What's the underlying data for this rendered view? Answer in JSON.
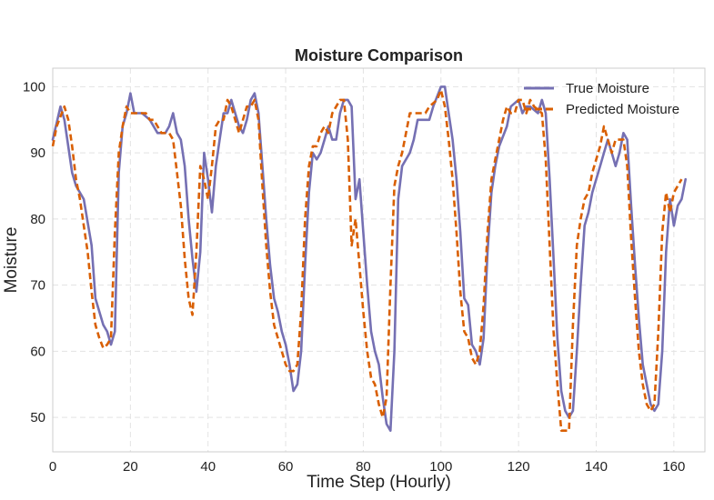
{
  "chart_data": {
    "type": "line",
    "title": "Moisture Comparison",
    "xlabel": "Time Step (Hourly)",
    "ylabel": "Moisture",
    "xlim": [
      0,
      168
    ],
    "ylim": [
      44.8,
      102.8
    ],
    "xticks": [
      0,
      20,
      40,
      60,
      80,
      100,
      120,
      140,
      160
    ],
    "yticks": [
      50,
      60,
      70,
      80,
      90,
      100
    ],
    "grid": true,
    "legend_position": "top-right",
    "series": [
      {
        "name": "True Moisture",
        "color": "#7570b3",
        "style": "solid",
        "points": [
          [
            0,
            92
          ],
          [
            2,
            97
          ],
          [
            3,
            95
          ],
          [
            5,
            87
          ],
          [
            6,
            85
          ],
          [
            8,
            83
          ],
          [
            10,
            76
          ],
          [
            11,
            68
          ],
          [
            13,
            64
          ],
          [
            14,
            63
          ],
          [
            15,
            61
          ],
          [
            16,
            63
          ],
          [
            17,
            87
          ],
          [
            18,
            94
          ],
          [
            19,
            96
          ],
          [
            20,
            99
          ],
          [
            21,
            96
          ],
          [
            23,
            96
          ],
          [
            25,
            95
          ],
          [
            27,
            93
          ],
          [
            29,
            93
          ],
          [
            30,
            94
          ],
          [
            31,
            96
          ],
          [
            32,
            93
          ],
          [
            33,
            92
          ],
          [
            34,
            88
          ],
          [
            35,
            80
          ],
          [
            36,
            74
          ],
          [
            37,
            69
          ],
          [
            38,
            75
          ],
          [
            39,
            90
          ],
          [
            40,
            86
          ],
          [
            41,
            81
          ],
          [
            42,
            88
          ],
          [
            43,
            92
          ],
          [
            44,
            96
          ],
          [
            45,
            96
          ],
          [
            46,
            98
          ],
          [
            47,
            96
          ],
          [
            48,
            94
          ],
          [
            49,
            93
          ],
          [
            50,
            95
          ],
          [
            51,
            98
          ],
          [
            52,
            99
          ],
          [
            53,
            96
          ],
          [
            54,
            88
          ],
          [
            55,
            80
          ],
          [
            56,
            73
          ],
          [
            57,
            68
          ],
          [
            58,
            66
          ],
          [
            59,
            63
          ],
          [
            60,
            61
          ],
          [
            61,
            58
          ],
          [
            62,
            54
          ],
          [
            63,
            55
          ],
          [
            64,
            60
          ],
          [
            65,
            73
          ],
          [
            66,
            84
          ],
          [
            67,
            90
          ],
          [
            68,
            89
          ],
          [
            69,
            90
          ],
          [
            70,
            92
          ],
          [
            71,
            94
          ],
          [
            72,
            92
          ],
          [
            73,
            92
          ],
          [
            74,
            96
          ],
          [
            75,
            98
          ],
          [
            76,
            98
          ],
          [
            77,
            97
          ],
          [
            78,
            83
          ],
          [
            79,
            86
          ],
          [
            80,
            78
          ],
          [
            81,
            70
          ],
          [
            82,
            63
          ],
          [
            83,
            60
          ],
          [
            84,
            58
          ],
          [
            85,
            53
          ],
          [
            86,
            49
          ],
          [
            87,
            48
          ],
          [
            88,
            60
          ],
          [
            89,
            83
          ],
          [
            90,
            88
          ],
          [
            92,
            90
          ],
          [
            93,
            92
          ],
          [
            94,
            95
          ],
          [
            95,
            95
          ],
          [
            97,
            95
          ],
          [
            98,
            97
          ],
          [
            100,
            100
          ],
          [
            101,
            100
          ],
          [
            102,
            96
          ],
          [
            103,
            92
          ],
          [
            104,
            86
          ],
          [
            105,
            78
          ],
          [
            106,
            68
          ],
          [
            107,
            67
          ],
          [
            108,
            61
          ],
          [
            109,
            60
          ],
          [
            110,
            58
          ],
          [
            111,
            62
          ],
          [
            112,
            75
          ],
          [
            113,
            84
          ],
          [
            114,
            88
          ],
          [
            115,
            91
          ],
          [
            117,
            94
          ],
          [
            118,
            97
          ],
          [
            120,
            98
          ],
          [
            121,
            96
          ],
          [
            122,
            97
          ],
          [
            123,
            97
          ],
          [
            125,
            96
          ],
          [
            126,
            98
          ],
          [
            127,
            96
          ],
          [
            128,
            86
          ],
          [
            129,
            74
          ],
          [
            130,
            62
          ],
          [
            131,
            54
          ],
          [
            132,
            51
          ],
          [
            133,
            50
          ],
          [
            134,
            51
          ],
          [
            135,
            60
          ],
          [
            136,
            70
          ],
          [
            137,
            79
          ],
          [
            138,
            81
          ],
          [
            139,
            84
          ],
          [
            140,
            86
          ],
          [
            141,
            88
          ],
          [
            142,
            90
          ],
          [
            143,
            92
          ],
          [
            144,
            90
          ],
          [
            145,
            88
          ],
          [
            146,
            90
          ],
          [
            147,
            93
          ],
          [
            148,
            92
          ],
          [
            149,
            82
          ],
          [
            150,
            73
          ],
          [
            151,
            65
          ],
          [
            152,
            58
          ],
          [
            153,
            55
          ],
          [
            154,
            52
          ],
          [
            155,
            51
          ],
          [
            156,
            52
          ],
          [
            157,
            60
          ],
          [
            158,
            75
          ],
          [
            159,
            83
          ],
          [
            160,
            79
          ],
          [
            161,
            82
          ],
          [
            162,
            83
          ],
          [
            163,
            86
          ]
        ]
      },
      {
        "name": "Predicted Moisture",
        "color": "#d95f02",
        "style": "dashed",
        "points": [
          [
            0,
            91
          ],
          [
            1,
            94
          ],
          [
            3,
            97
          ],
          [
            4,
            95
          ],
          [
            5,
            91
          ],
          [
            6,
            86
          ],
          [
            7,
            83
          ],
          [
            8,
            79
          ],
          [
            9,
            75
          ],
          [
            10,
            69
          ],
          [
            11,
            64
          ],
          [
            12,
            62
          ],
          [
            13,
            60.5
          ],
          [
            14,
            61
          ],
          [
            15,
            62
          ],
          [
            16,
            78
          ],
          [
            17,
            90
          ],
          [
            18,
            94
          ],
          [
            19,
            97
          ],
          [
            20,
            96
          ],
          [
            22,
            96
          ],
          [
            24,
            96
          ],
          [
            25,
            95
          ],
          [
            26,
            95
          ],
          [
            27,
            94
          ],
          [
            28,
            93
          ],
          [
            30,
            93
          ],
          [
            31,
            92
          ],
          [
            32,
            87
          ],
          [
            33,
            82
          ],
          [
            34,
            74
          ],
          [
            35,
            68
          ],
          [
            36,
            65.5
          ],
          [
            37,
            75
          ],
          [
            38,
            88
          ],
          [
            39,
            86
          ],
          [
            40,
            83
          ],
          [
            41,
            88
          ],
          [
            42,
            94
          ],
          [
            43,
            95
          ],
          [
            44,
            95
          ],
          [
            45,
            98
          ],
          [
            46,
            97
          ],
          [
            47,
            95
          ],
          [
            48,
            93
          ],
          [
            49,
            95
          ],
          [
            50,
            97
          ],
          [
            51,
            97
          ],
          [
            52,
            98
          ],
          [
            53,
            95
          ],
          [
            54,
            85
          ],
          [
            55,
            76
          ],
          [
            56,
            69
          ],
          [
            57,
            64
          ],
          [
            58,
            62
          ],
          [
            59,
            60
          ],
          [
            60,
            58
          ],
          [
            61,
            57
          ],
          [
            62,
            57
          ],
          [
            63,
            58
          ],
          [
            64,
            66
          ],
          [
            65,
            80
          ],
          [
            66,
            88
          ],
          [
            67,
            91
          ],
          [
            68,
            91
          ],
          [
            69,
            93
          ],
          [
            70,
            94
          ],
          [
            71,
            93
          ],
          [
            72,
            96
          ],
          [
            73,
            97
          ],
          [
            74,
            98
          ],
          [
            75,
            98
          ],
          [
            76,
            92
          ],
          [
            77,
            76
          ],
          [
            78,
            80
          ],
          [
            79,
            73
          ],
          [
            80,
            66
          ],
          [
            81,
            60
          ],
          [
            82,
            56
          ],
          [
            83,
            55
          ],
          [
            84,
            52
          ],
          [
            85,
            50
          ],
          [
            86,
            53
          ],
          [
            87,
            70
          ],
          [
            88,
            85
          ],
          [
            89,
            88
          ],
          [
            90,
            90
          ],
          [
            91,
            93
          ],
          [
            92,
            96
          ],
          [
            94,
            96
          ],
          [
            96,
            96
          ],
          [
            97,
            97
          ],
          [
            99,
            98
          ],
          [
            100,
            99.5
          ],
          [
            101,
            97
          ],
          [
            102,
            92
          ],
          [
            103,
            86
          ],
          [
            104,
            78
          ],
          [
            105,
            69
          ],
          [
            106,
            63
          ],
          [
            107,
            62
          ],
          [
            108,
            59
          ],
          [
            109,
            58
          ],
          [
            110,
            60
          ],
          [
            111,
            67
          ],
          [
            112,
            78
          ],
          [
            113,
            86
          ],
          [
            114,
            89
          ],
          [
            115,
            92
          ],
          [
            116,
            95
          ],
          [
            117,
            97
          ],
          [
            118,
            96
          ],
          [
            119,
            96
          ],
          [
            120,
            98
          ],
          [
            121,
            98
          ],
          [
            122,
            96
          ],
          [
            123,
            98
          ],
          [
            124,
            97
          ],
          [
            126,
            96
          ],
          [
            127,
            89
          ],
          [
            128,
            76
          ],
          [
            129,
            63
          ],
          [
            130,
            55
          ],
          [
            131,
            48
          ],
          [
            132,
            48
          ],
          [
            133,
            48
          ],
          [
            134,
            64
          ],
          [
            135,
            76
          ],
          [
            136,
            80
          ],
          [
            137,
            83
          ],
          [
            138,
            84
          ],
          [
            139,
            87
          ],
          [
            140,
            89
          ],
          [
            141,
            91
          ],
          [
            142,
            94
          ],
          [
            143,
            92
          ],
          [
            144,
            90
          ],
          [
            145,
            92
          ],
          [
            146,
            92
          ],
          [
            147,
            92
          ],
          [
            148,
            88
          ],
          [
            149,
            77
          ],
          [
            150,
            68
          ],
          [
            151,
            60
          ],
          [
            152,
            55
          ],
          [
            153,
            52
          ],
          [
            154,
            51
          ],
          [
            155,
            52
          ],
          [
            156,
            63
          ],
          [
            157,
            78
          ],
          [
            158,
            84
          ],
          [
            159,
            81
          ],
          [
            160,
            84
          ],
          [
            161,
            85
          ],
          [
            162,
            86
          ]
        ]
      }
    ]
  }
}
